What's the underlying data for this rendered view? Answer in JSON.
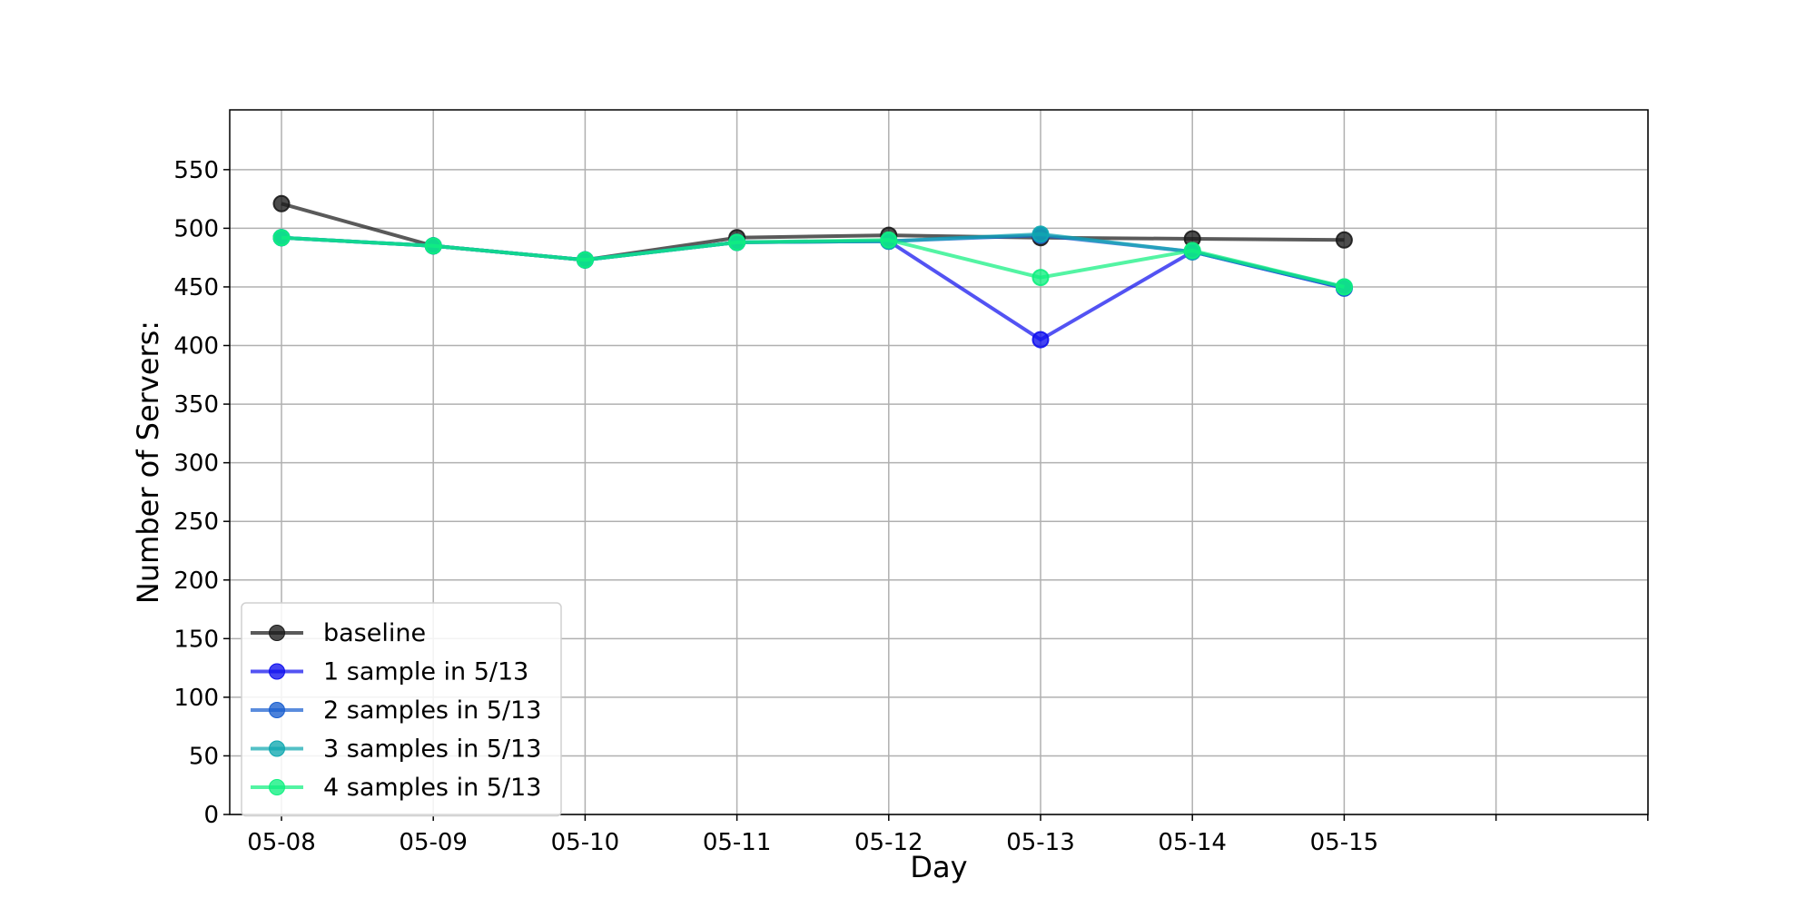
{
  "chart_data": {
    "type": "line",
    "title": "",
    "xlabel": "Day",
    "ylabel": "Number of Servers:",
    "categories": [
      "05-08",
      "05-09",
      "05-10",
      "05-11",
      "05-12",
      "05-13",
      "05-14",
      "05-15"
    ],
    "x_slots": 10,
    "ylim": [
      0,
      600
    ],
    "yticks": [
      0,
      50,
      100,
      150,
      200,
      250,
      300,
      350,
      400,
      450,
      500,
      550
    ],
    "grid": true,
    "legend_position": "lower-left",
    "series": [
      {
        "name": "baseline",
        "color": "#1a1a1a",
        "values": [
          521,
          485,
          473,
          492,
          494,
          492,
          491,
          490
        ]
      },
      {
        "name": "1 sample in 5/13",
        "color": "#1010ee",
        "values": [
          492,
          485,
          473,
          488,
          489,
          405,
          480,
          449
        ]
      },
      {
        "name": "2 samples in 5/13",
        "color": "#1a5fd0",
        "values": [
          492,
          485,
          473,
          488,
          489,
          494,
          480,
          449
        ]
      },
      {
        "name": "3 samples in 5/13",
        "color": "#10a8b0",
        "values": [
          492,
          485,
          473,
          488,
          489,
          495,
          480,
          450
        ]
      },
      {
        "name": "4 samples in 5/13",
        "color": "#10f080",
        "values": [
          492,
          485,
          473,
          488,
          490,
          458,
          481,
          450
        ]
      }
    ]
  }
}
